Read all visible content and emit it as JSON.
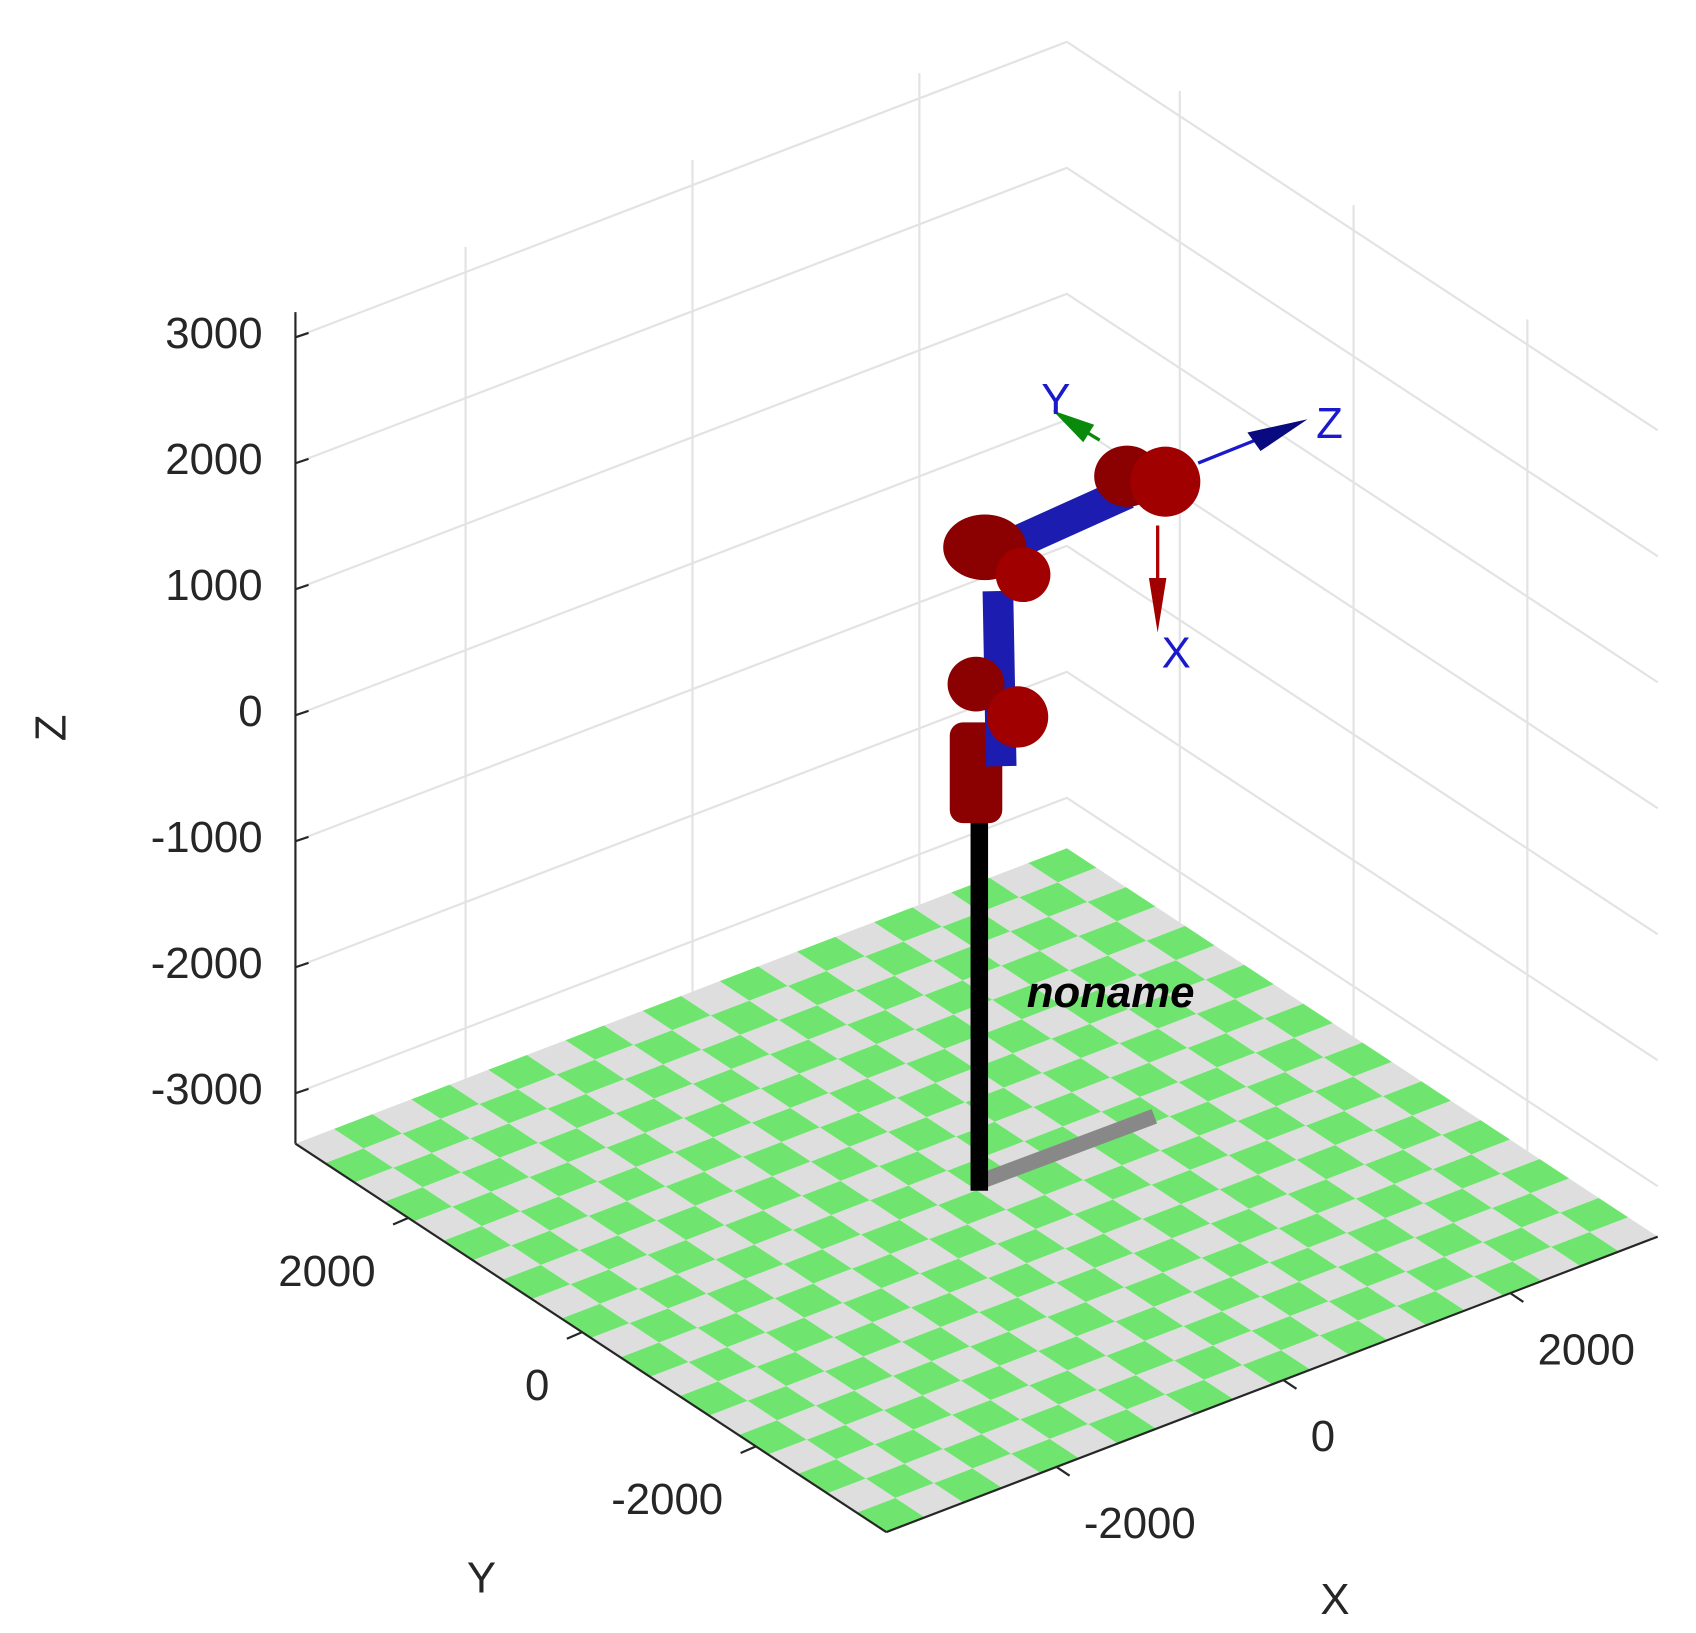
{
  "chart_data": {
    "type": "robot3d",
    "xlabel": "X",
    "ylabel": "Y",
    "zlabel": "Z",
    "xlim": [
      -3500,
      3300
    ],
    "ylim": [
      -3500,
      3300
    ],
    "zlim": [
      -3400,
      3200
    ],
    "xticks": [
      -2000,
      0,
      2000
    ],
    "yticks": [
      -2000,
      0,
      2000
    ],
    "zticks": [
      -3000,
      -2000,
      -1000,
      0,
      1000,
      2000,
      3000
    ],
    "grid": true,
    "annotations": [
      "noname",
      "X",
      "Y",
      "Z"
    ]
  }
}
